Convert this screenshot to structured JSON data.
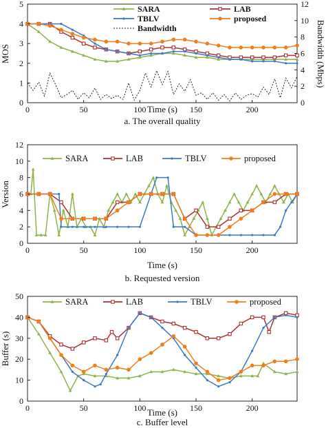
{
  "chart_data": [
    {
      "type": "line",
      "caption": "a. The overall quality",
      "xlabel": "Time (s)",
      "ylabel": "MOS",
      "ylabel_right": "Bandwidth (Mbps)",
      "xlim": [
        0,
        240
      ],
      "ylim": [
        0,
        5
      ],
      "ylim_right": [
        0,
        12
      ],
      "xticks": [
        0,
        50,
        100,
        150,
        200
      ],
      "yticks": [
        0,
        1,
        2,
        3,
        4,
        5
      ],
      "yticks_right": [
        0,
        2,
        4,
        6,
        8,
        10,
        12
      ],
      "legend": "top",
      "colors": {
        "SARA": "#8db44a",
        "LAB": "#b03030",
        "TBLV": "#3b78c8",
        "proposed": "#f07f1a",
        "Bandwidth": "#222222"
      },
      "series": [
        {
          "name": "SARA",
          "axis": "left",
          "x": [
            0,
            10,
            20,
            30,
            40,
            50,
            60,
            70,
            80,
            90,
            100,
            110,
            120,
            130,
            140,
            150,
            160,
            170,
            180,
            190,
            200,
            210,
            220,
            230,
            240
          ],
          "values": [
            4.0,
            3.6,
            3.1,
            2.8,
            2.6,
            2.4,
            2.2,
            2.1,
            2.1,
            2.2,
            2.3,
            2.4,
            2.5,
            2.5,
            2.4,
            2.3,
            2.3,
            2.2,
            2.2,
            2.2,
            2.2,
            2.2,
            2.2,
            2.2,
            2.2
          ]
        },
        {
          "name": "LAB",
          "axis": "left",
          "x": [
            0,
            10,
            20,
            30,
            40,
            50,
            60,
            70,
            80,
            90,
            100,
            110,
            120,
            130,
            140,
            150,
            160,
            170,
            180,
            190,
            200,
            210,
            220,
            230,
            240
          ],
          "values": [
            4.0,
            4.0,
            4.0,
            3.6,
            3.3,
            3.0,
            2.8,
            2.7,
            2.6,
            2.5,
            2.6,
            2.7,
            2.8,
            2.8,
            2.7,
            2.6,
            2.5,
            2.4,
            2.3,
            2.3,
            2.3,
            2.3,
            2.3,
            2.4,
            2.4
          ]
        },
        {
          "name": "TBLV",
          "axis": "left",
          "x": [
            0,
            10,
            20,
            30,
            40,
            50,
            60,
            70,
            80,
            90,
            100,
            110,
            120,
            130,
            140,
            150,
            160,
            170,
            180,
            190,
            200,
            210,
            220,
            230,
            240
          ],
          "values": [
            4.0,
            4.0,
            4.0,
            4.0,
            3.7,
            3.4,
            3.0,
            2.7,
            2.6,
            2.5,
            2.4,
            2.5,
            2.5,
            2.6,
            2.6,
            2.5,
            2.4,
            2.3,
            2.2,
            2.2,
            2.1,
            2.1,
            2.1,
            2.0,
            2.0
          ]
        },
        {
          "name": "proposed",
          "axis": "left",
          "x": [
            0,
            10,
            20,
            30,
            40,
            50,
            60,
            70,
            80,
            90,
            100,
            110,
            120,
            130,
            140,
            150,
            160,
            170,
            180,
            190,
            200,
            210,
            220,
            230,
            240
          ],
          "values": [
            4.0,
            4.0,
            3.9,
            3.7,
            3.5,
            3.3,
            3.2,
            3.1,
            3.1,
            3.0,
            3.0,
            3.0,
            3.1,
            3.2,
            3.2,
            3.1,
            3.0,
            2.9,
            2.8,
            2.8,
            2.8,
            2.8,
            2.8,
            2.8,
            2.9
          ]
        },
        {
          "name": "Bandwidth",
          "axis": "right",
          "x": [
            0,
            5,
            10,
            15,
            20,
            25,
            30,
            35,
            40,
            45,
            50,
            55,
            60,
            65,
            70,
            75,
            80,
            85,
            90,
            95,
            100,
            105,
            110,
            115,
            120,
            125,
            130,
            135,
            140,
            145,
            150,
            155,
            160,
            165,
            170,
            175,
            180,
            185,
            190,
            195,
            200,
            205,
            210,
            215,
            220,
            225,
            230,
            235,
            240
          ],
          "values": [
            2.4,
            1.5,
            2.5,
            0.8,
            3.6,
            2.2,
            0.6,
            1.0,
            1.5,
            0.4,
            1.2,
            0.6,
            1.8,
            0.4,
            1.0,
            0.5,
            0.9,
            0.4,
            2.4,
            0.3,
            1.5,
            3.6,
            1.9,
            3.9,
            2.2,
            3.8,
            1.0,
            2.3,
            1.4,
            2.8,
            0.9,
            1.2,
            0.4,
            1.2,
            0.3,
            1.0,
            0.2,
            1.2,
            0.4,
            0.9,
            1.1,
            0.7,
            1.9,
            1.0,
            2.9,
            0.6,
            3.0,
            1.8,
            3.2
          ]
        }
      ]
    },
    {
      "type": "line",
      "caption": "b. Requested version",
      "xlabel": "Time (s)",
      "ylabel": "Version",
      "xlim": [
        0,
        240
      ],
      "ylim": [
        0,
        12
      ],
      "xticks": [
        0,
        50,
        100,
        150,
        200
      ],
      "yticks": [
        0,
        2,
        4,
        6,
        8,
        10,
        12
      ],
      "legend": "top",
      "colors": {
        "SARA": "#8db44a",
        "LAB": "#b03030",
        "TBLV": "#3b78c8",
        "proposed": "#f07f1a"
      },
      "series": [
        {
          "name": "SARA",
          "x": [
            0,
            3,
            5,
            8,
            12,
            16,
            20,
            24,
            28,
            32,
            36,
            40,
            44,
            48,
            52,
            56,
            60,
            64,
            68,
            72,
            76,
            80,
            84,
            88,
            92,
            96,
            100,
            104,
            108,
            112,
            116,
            120,
            124,
            128,
            132,
            136,
            140,
            144,
            148,
            152,
            156,
            160,
            164,
            168,
            172,
            176,
            180,
            184,
            188,
            192,
            196,
            200,
            204,
            208,
            212,
            216,
            220,
            224,
            228,
            232,
            236,
            240
          ],
          "values": [
            6,
            6,
            9,
            1,
            1,
            1,
            6,
            4,
            1,
            4,
            2,
            6,
            2,
            3,
            2,
            2,
            1,
            3,
            2,
            4,
            5,
            6,
            5,
            6,
            5,
            6,
            5,
            6,
            7,
            8,
            6,
            5,
            7,
            5,
            4,
            3,
            1,
            2,
            3,
            4,
            5,
            3,
            1,
            2,
            3,
            4,
            5,
            6,
            5,
            4,
            5,
            6,
            7,
            6,
            5,
            6,
            7,
            6,
            5,
            6,
            5,
            6
          ]
        },
        {
          "name": "LAB",
          "x": [
            0,
            10,
            20,
            30,
            40,
            50,
            60,
            70,
            80,
            90,
            100,
            110,
            120,
            130,
            140,
            150,
            160,
            170,
            180,
            190,
            200,
            210,
            220,
            230,
            240
          ],
          "values": [
            6,
            6,
            6,
            5,
            3,
            3,
            3,
            3,
            5,
            5,
            6,
            6,
            6,
            6,
            3,
            4,
            2,
            2,
            3,
            4,
            4,
            5,
            5,
            6,
            6
          ]
        },
        {
          "name": "TBLV",
          "x": [
            0,
            10,
            20,
            28,
            30,
            40,
            50,
            60,
            70,
            80,
            90,
            100,
            110,
            115,
            125,
            130,
            140,
            150,
            160,
            170,
            180,
            190,
            200,
            210,
            220,
            225,
            230,
            235,
            240
          ],
          "values": [
            6,
            6,
            6,
            6,
            2,
            2,
            2,
            2,
            2,
            2,
            2,
            2,
            6,
            8,
            8,
            2,
            2,
            1,
            1,
            1,
            1,
            1,
            1,
            1,
            1,
            2,
            4,
            5,
            6
          ]
        },
        {
          "name": "proposed",
          "x": [
            0,
            10,
            20,
            30,
            40,
            50,
            60,
            70,
            80,
            90,
            100,
            110,
            120,
            130,
            140,
            150,
            160,
            170,
            180,
            190,
            200,
            210,
            220,
            230,
            240
          ],
          "values": [
            6,
            6,
            6,
            3,
            3,
            3,
            3,
            3,
            4,
            5,
            6,
            6,
            6,
            6,
            3,
            1,
            1,
            1,
            2,
            3,
            4,
            5,
            6,
            6,
            6
          ]
        }
      ]
    },
    {
      "type": "line",
      "caption": "c. Buffer level",
      "xlabel": "Time (s)",
      "ylabel": "Buffer (s)",
      "xlim": [
        0,
        240
      ],
      "ylim": [
        0,
        50
      ],
      "xticks": [
        0,
        50,
        100,
        150,
        200
      ],
      "yticks": [
        0,
        10,
        20,
        30,
        40,
        50
      ],
      "legend": "top",
      "colors": {
        "SARA": "#8db44a",
        "LAB": "#b03030",
        "TBLV": "#3b78c8",
        "proposed": "#f07f1a"
      },
      "series": [
        {
          "name": "SARA",
          "x": [
            0,
            10,
            20,
            30,
            38,
            45,
            50,
            60,
            70,
            80,
            90,
            100,
            110,
            120,
            130,
            140,
            150,
            160,
            170,
            180,
            190,
            200,
            205,
            210,
            220,
            230,
            240
          ],
          "values": [
            40,
            32,
            23,
            14,
            5,
            12,
            13,
            12,
            12,
            11,
            11,
            12,
            14,
            14,
            15,
            14,
            13,
            13,
            12,
            11,
            12,
            12,
            12,
            18,
            14,
            13,
            14
          ]
        },
        {
          "name": "LAB",
          "x": [
            0,
            10,
            20,
            30,
            40,
            50,
            60,
            70,
            75,
            80,
            90,
            100,
            110,
            120,
            130,
            140,
            150,
            160,
            170,
            180,
            190,
            200,
            210,
            215,
            220,
            230,
            240
          ],
          "values": [
            40,
            38,
            31,
            27,
            25,
            28,
            30,
            29,
            33,
            30,
            35,
            42,
            40,
            38,
            37,
            35,
            33,
            30,
            30,
            32,
            37,
            40,
            40,
            33,
            40,
            42,
            41
          ]
        },
        {
          "name": "TBLV",
          "x": [
            0,
            10,
            20,
            30,
            40,
            50,
            60,
            65,
            70,
            80,
            90,
            100,
            110,
            120,
            130,
            140,
            150,
            160,
            170,
            180,
            190,
            200,
            210,
            220,
            230,
            240
          ],
          "values": [
            40,
            38,
            30,
            22,
            14,
            10,
            7,
            8,
            13,
            22,
            35,
            42,
            40,
            35,
            30,
            22,
            16,
            10,
            7,
            9,
            14,
            24,
            35,
            40,
            41,
            40
          ]
        },
        {
          "name": "proposed",
          "x": [
            0,
            10,
            20,
            30,
            40,
            50,
            60,
            70,
            80,
            90,
            100,
            110,
            120,
            130,
            140,
            150,
            160,
            170,
            180,
            190,
            200,
            210,
            220,
            230,
            240
          ],
          "values": [
            40,
            38,
            30,
            22,
            17,
            14,
            17,
            15,
            16,
            15,
            20,
            23,
            27,
            31,
            26,
            18,
            14,
            10,
            11,
            14,
            17,
            17,
            19,
            19,
            20
          ]
        }
      ]
    }
  ]
}
